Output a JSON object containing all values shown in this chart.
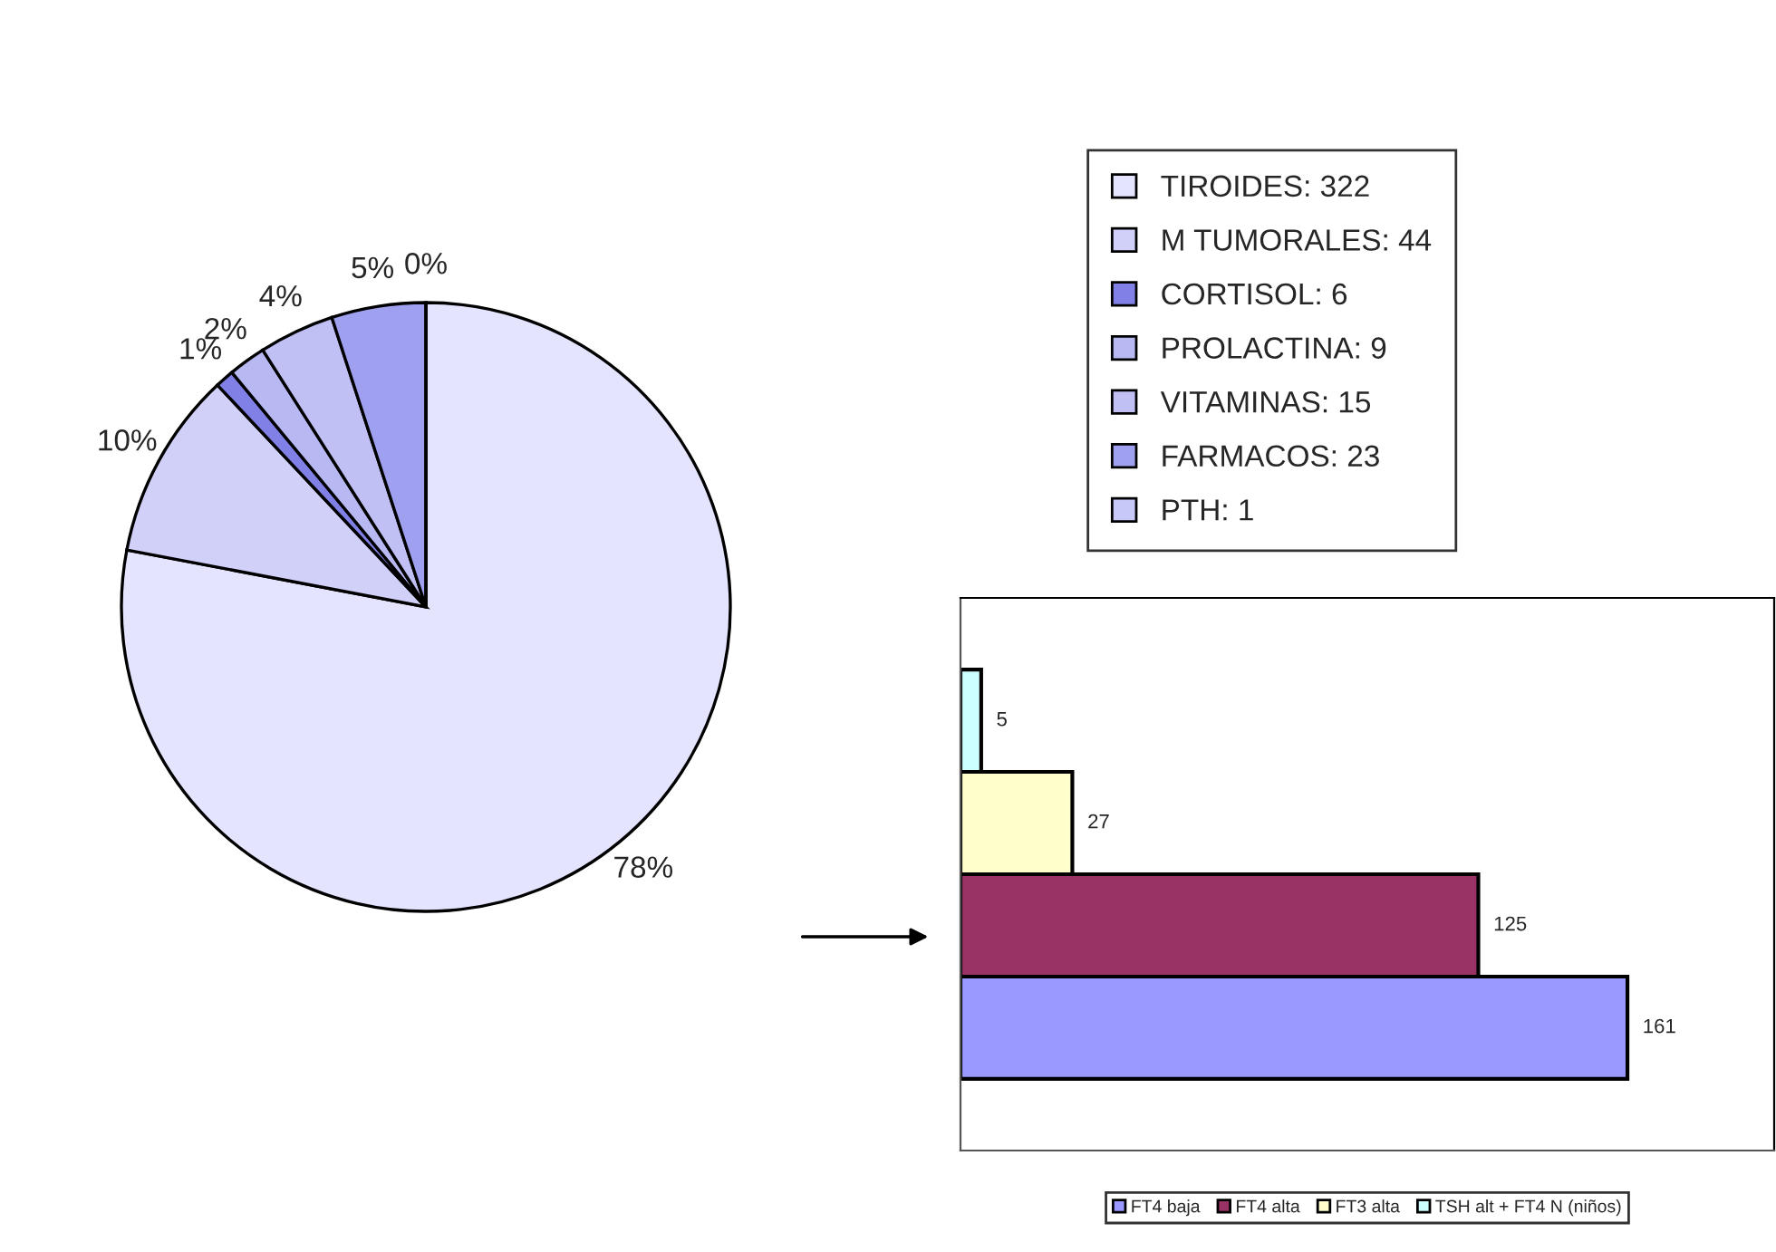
{
  "chart_data": [
    {
      "type": "pie",
      "categories": [
        "TIROIDES: 322",
        "M TUMORALES: 44",
        "CORTISOL: 6",
        "PROLACTINA: 9",
        "VITAMINAS: 15",
        "FARMACOS: 23",
        "PTH: 1"
      ],
      "values": [
        78,
        10,
        1,
        2,
        4,
        5,
        0
      ],
      "value_labels": [
        "78%",
        "10%",
        "1%",
        "2%",
        "4%",
        "5%",
        "0%"
      ],
      "colors": [
        "#e4e4ff",
        "#d0d0f8",
        "#8080e6",
        "#b8b8f2",
        "#c0c0f4",
        "#a0a0f0",
        "#c8c8f8"
      ],
      "legend": "top right"
    },
    {
      "type": "bar",
      "orientation": "horizontal",
      "categories": [
        null,
        null,
        null,
        null
      ],
      "series": [
        {
          "name": "FT4 baja",
          "color": "#9999ff",
          "values": [
            null,
            null,
            null,
            161
          ]
        },
        {
          "name": "FT4 alta",
          "color": "#993366",
          "values": [
            null,
            null,
            125,
            null
          ]
        },
        {
          "name": "FT3 alta",
          "color": "#ffffcc",
          "values": [
            null,
            27,
            null,
            null
          ]
        },
        {
          "name": "TSH alt + FT4 N (niños)",
          "color": "#ccffff",
          "values": [
            5,
            null,
            null,
            null
          ]
        }
      ],
      "stacked": true,
      "data_labels": true,
      "tick_labels": false,
      "legend": "bottom"
    }
  ]
}
